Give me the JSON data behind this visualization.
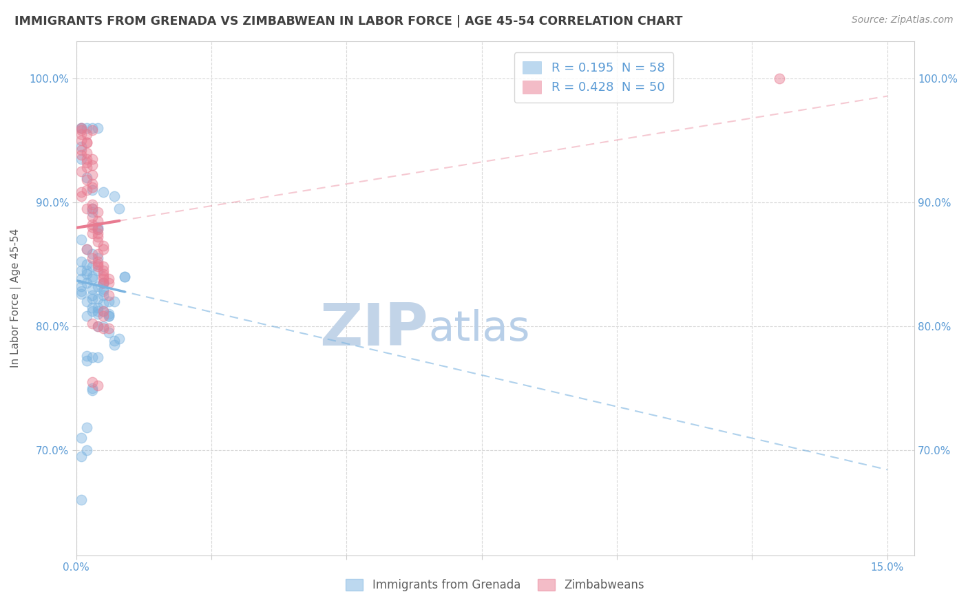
{
  "title": "IMMIGRANTS FROM GRENADA VS ZIMBABWEAN IN LABOR FORCE | AGE 45-54 CORRELATION CHART",
  "source": "Source: ZipAtlas.com",
  "ylabel_label": "In Labor Force | Age 45-54",
  "grenada_color": "#7ab3e0",
  "zimbabwe_color": "#e87a90",
  "grenada_scatter": [
    [
      0.001,
      0.96
    ],
    [
      0.001,
      0.96
    ],
    [
      0.002,
      0.96
    ],
    [
      0.003,
      0.96
    ],
    [
      0.004,
      0.96
    ],
    [
      0.001,
      0.945
    ],
    [
      0.001,
      0.935
    ],
    [
      0.002,
      0.92
    ],
    [
      0.003,
      0.91
    ],
    [
      0.005,
      0.908
    ],
    [
      0.003,
      0.895
    ],
    [
      0.004,
      0.88
    ],
    [
      0.007,
      0.905
    ],
    [
      0.008,
      0.895
    ],
    [
      0.003,
      0.892
    ],
    [
      0.004,
      0.878
    ],
    [
      0.001,
      0.87
    ],
    [
      0.002,
      0.862
    ],
    [
      0.003,
      0.858
    ],
    [
      0.004,
      0.855
    ],
    [
      0.001,
      0.852
    ],
    [
      0.002,
      0.85
    ],
    [
      0.003,
      0.848
    ],
    [
      0.001,
      0.845
    ],
    [
      0.002,
      0.845
    ],
    [
      0.004,
      0.845
    ],
    [
      0.002,
      0.842
    ],
    [
      0.003,
      0.84
    ],
    [
      0.001,
      0.838
    ],
    [
      0.003,
      0.838
    ],
    [
      0.005,
      0.835
    ],
    [
      0.002,
      0.835
    ],
    [
      0.001,
      0.832
    ],
    [
      0.004,
      0.832
    ],
    [
      0.003,
      0.83
    ],
    [
      0.005,
      0.83
    ],
    [
      0.001,
      0.828
    ],
    [
      0.001,
      0.826
    ],
    [
      0.003,
      0.825
    ],
    [
      0.005,
      0.825
    ],
    [
      0.004,
      0.822
    ],
    [
      0.003,
      0.822
    ],
    [
      0.002,
      0.82
    ],
    [
      0.006,
      0.82
    ],
    [
      0.005,
      0.818
    ],
    [
      0.004,
      0.815
    ],
    [
      0.003,
      0.815
    ],
    [
      0.005,
      0.812
    ],
    [
      0.004,
      0.812
    ],
    [
      0.003,
      0.812
    ],
    [
      0.004,
      0.81
    ],
    [
      0.006,
      0.808
    ],
    [
      0.002,
      0.808
    ],
    [
      0.006,
      0.795
    ],
    [
      0.007,
      0.788
    ],
    [
      0.007,
      0.785
    ],
    [
      0.009,
      0.84
    ],
    [
      0.009,
      0.84
    ],
    [
      0.004,
      0.8
    ],
    [
      0.005,
      0.8
    ],
    [
      0.003,
      0.75
    ],
    [
      0.003,
      0.748
    ],
    [
      0.002,
      0.718
    ],
    [
      0.002,
      0.7
    ],
    [
      0.003,
      0.775
    ],
    [
      0.004,
      0.775
    ],
    [
      0.002,
      0.772
    ],
    [
      0.002,
      0.776
    ],
    [
      0.007,
      0.82
    ],
    [
      0.006,
      0.81
    ],
    [
      0.005,
      0.828
    ],
    [
      0.005,
      0.835
    ],
    [
      0.008,
      0.79
    ],
    [
      0.006,
      0.808
    ],
    [
      0.001,
      0.71
    ],
    [
      0.001,
      0.695
    ],
    [
      0.001,
      0.66
    ]
  ],
  "zimbabwe_scatter": [
    [
      0.001,
      0.96
    ],
    [
      0.001,
      0.958
    ],
    [
      0.001,
      0.955
    ],
    [
      0.001,
      0.95
    ],
    [
      0.002,
      0.948
    ],
    [
      0.001,
      0.942
    ],
    [
      0.002,
      0.94
    ],
    [
      0.001,
      0.938
    ],
    [
      0.002,
      0.935
    ],
    [
      0.003,
      0.935
    ],
    [
      0.002,
      0.932
    ],
    [
      0.003,
      0.93
    ],
    [
      0.002,
      0.928
    ],
    [
      0.001,
      0.925
    ],
    [
      0.003,
      0.922
    ],
    [
      0.002,
      0.918
    ],
    [
      0.003,
      0.915
    ],
    [
      0.003,
      0.912
    ],
    [
      0.002,
      0.91
    ],
    [
      0.001,
      0.908
    ],
    [
      0.001,
      0.905
    ],
    [
      0.003,
      0.898
    ],
    [
      0.003,
      0.895
    ],
    [
      0.002,
      0.895
    ],
    [
      0.004,
      0.892
    ],
    [
      0.003,
      0.888
    ],
    [
      0.004,
      0.885
    ],
    [
      0.003,
      0.882
    ],
    [
      0.003,
      0.88
    ],
    [
      0.004,
      0.878
    ],
    [
      0.003,
      0.875
    ],
    [
      0.004,
      0.875
    ],
    [
      0.004,
      0.872
    ],
    [
      0.004,
      0.868
    ],
    [
      0.005,
      0.865
    ],
    [
      0.005,
      0.862
    ],
    [
      0.002,
      0.862
    ],
    [
      0.004,
      0.858
    ],
    [
      0.003,
      0.855
    ],
    [
      0.004,
      0.852
    ],
    [
      0.004,
      0.85
    ],
    [
      0.004,
      0.848
    ],
    [
      0.005,
      0.848
    ],
    [
      0.005,
      0.845
    ],
    [
      0.005,
      0.842
    ],
    [
      0.005,
      0.84
    ],
    [
      0.005,
      0.838
    ],
    [
      0.005,
      0.835
    ],
    [
      0.006,
      0.835
    ],
    [
      0.003,
      0.755
    ],
    [
      0.004,
      0.752
    ],
    [
      0.004,
      0.8
    ],
    [
      0.006,
      0.798
    ],
    [
      0.005,
      0.798
    ],
    [
      0.005,
      0.808
    ],
    [
      0.005,
      0.812
    ],
    [
      0.006,
      0.838
    ],
    [
      0.006,
      0.825
    ],
    [
      0.003,
      0.802
    ],
    [
      0.002,
      0.955
    ],
    [
      0.002,
      0.948
    ],
    [
      0.003,
      0.958
    ],
    [
      0.13,
      1.0
    ]
  ],
  "xlim": [
    0.0,
    0.155
  ],
  "ylim": [
    0.615,
    1.03
  ],
  "yticks": [
    0.7,
    0.8,
    0.9,
    1.0
  ],
  "ytick_labels": [
    "70.0%",
    "80.0%",
    "90.0%",
    "100.0%"
  ],
  "xticks": [
    0.0,
    0.025,
    0.05,
    0.075,
    0.1,
    0.125,
    0.15
  ],
  "xtick_labels": [
    "0.0%",
    "",
    "",
    "",
    "",
    "",
    "15.0%"
  ],
  "watermark_zip": "ZIP",
  "watermark_atlas": "atlas",
  "watermark_color_zip": "#c2d4e8",
  "watermark_color_atlas": "#b8cfe8",
  "grid_color": "#d8d8d8",
  "background_color": "#ffffff",
  "title_color": "#404040",
  "source_color": "#909090",
  "tick_color": "#5b9bd5",
  "ylabel_color": "#606060"
}
